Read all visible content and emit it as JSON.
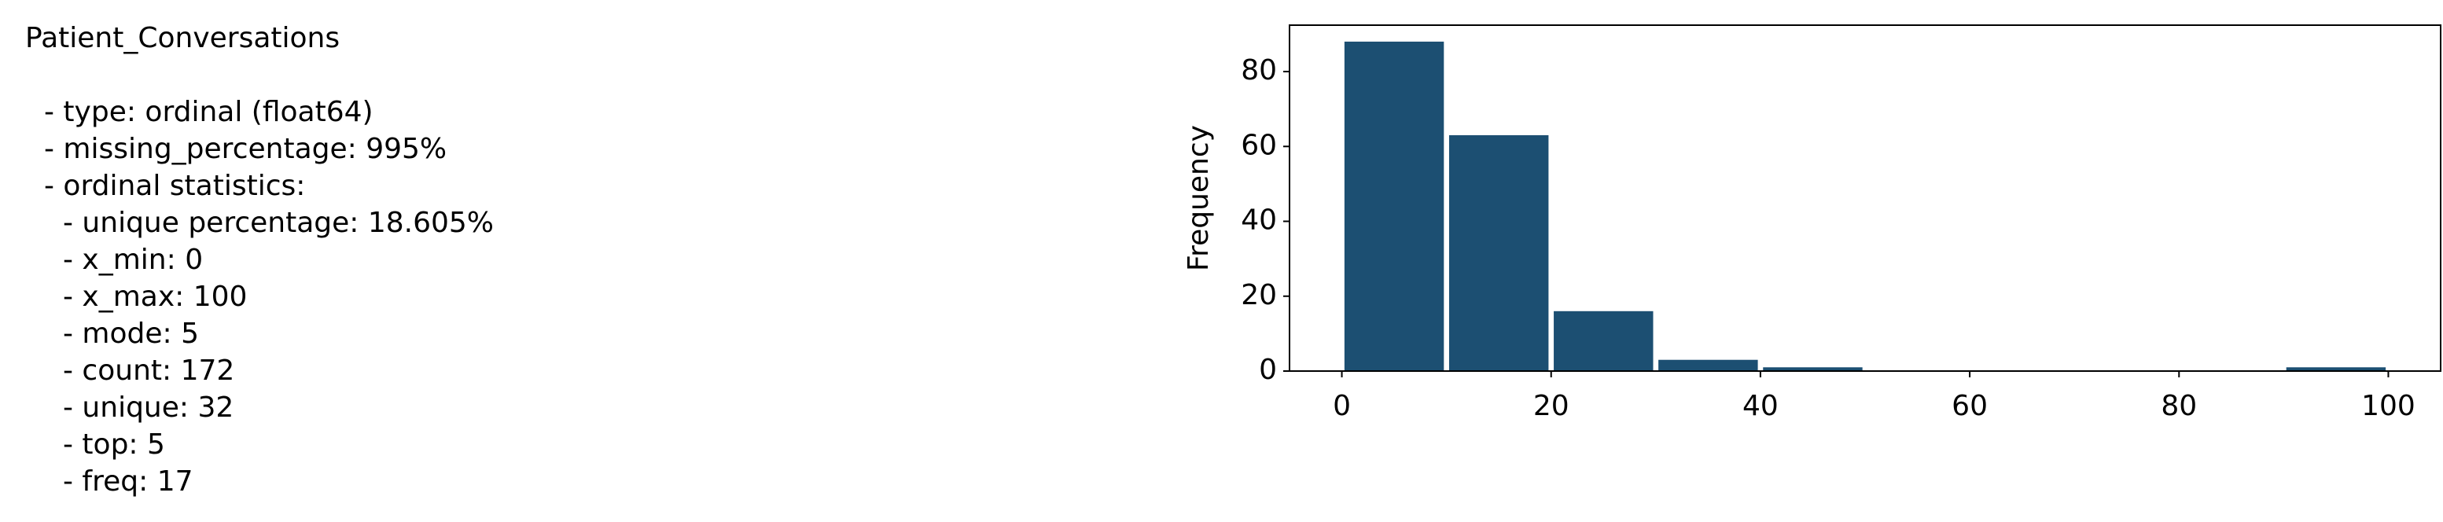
{
  "column_name": "Patient_Conversations",
  "stats": [
    "- type: ordinal (float64)",
    "- missing_percentage: 995%",
    "- ordinal statistics:"
  ],
  "ordinal_statistics": [
    "- unique percentage: 18.605%",
    "- x_min: 0",
    "- x_max: 100",
    "- mode: 5",
    "- count: 172",
    "- unique: 32",
    "- top: 5",
    "- freq: 17"
  ],
  "chart_data": {
    "type": "histogram",
    "ylabel": "Frequency",
    "bins": [
      0,
      10,
      20,
      30,
      40,
      50,
      60,
      70,
      80,
      90,
      100
    ],
    "values": [
      88,
      63,
      16,
      3,
      1,
      0,
      0,
      0,
      0,
      1
    ],
    "color": "#1c4f72",
    "xlim": [
      -5,
      105
    ],
    "ylim": [
      0,
      92.4
    ],
    "xticks": [
      0,
      20,
      40,
      60,
      80,
      100
    ],
    "yticks": [
      0,
      20,
      40,
      60,
      80
    ]
  }
}
